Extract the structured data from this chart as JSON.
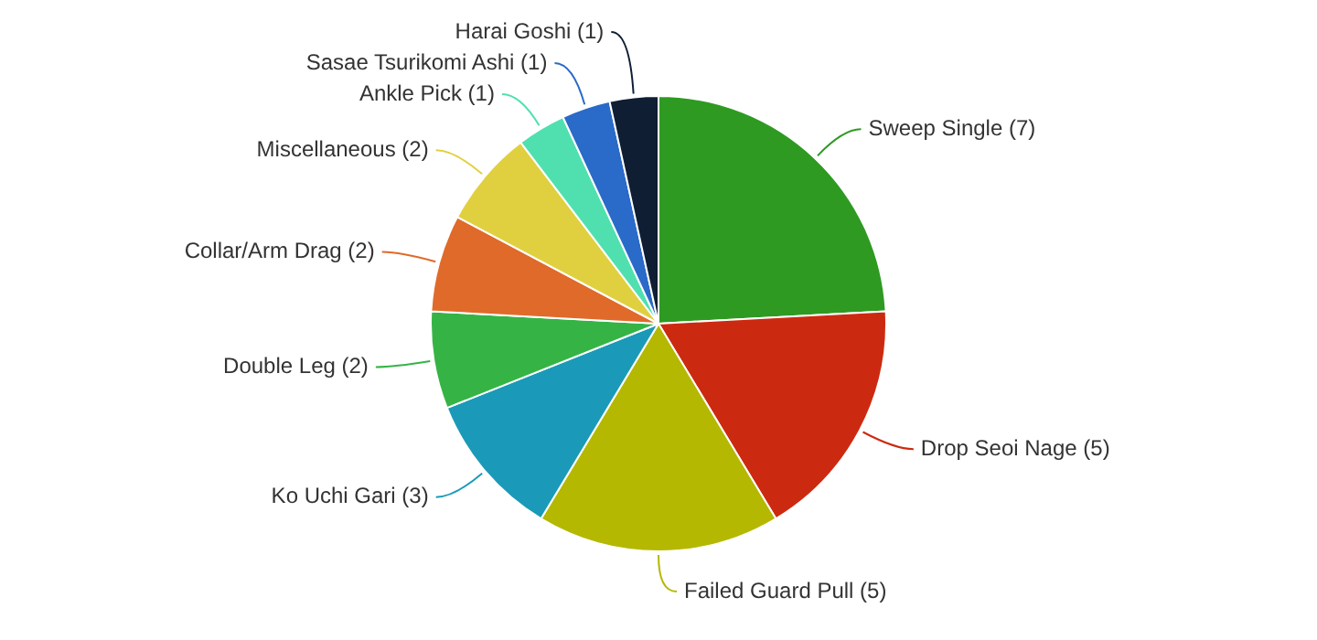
{
  "chart_data": {
    "type": "pie",
    "categories": [
      "Sweep Single (7)",
      "Drop Seoi Nage (5)",
      "Failed Guard Pull (5)",
      "Ko Uchi Gari (3)",
      "Double Leg (2)",
      "Collar/Arm Drag (2)",
      "Miscellaneous (2)",
      "Ankle Pick (1)",
      "Sasae Tsurikomi Ashi (1)",
      "Harai Goshi (1)"
    ],
    "values": [
      7,
      5,
      5,
      3,
      2,
      2,
      2,
      1,
      1,
      1
    ],
    "colors": [
      "#2e9a22",
      "#cc2a10",
      "#b5b800",
      "#1a9ab8",
      "#35b445",
      "#e06a2a",
      "#e0d040",
      "#50e0b0",
      "#2a6ac8",
      "#101e34"
    ]
  }
}
